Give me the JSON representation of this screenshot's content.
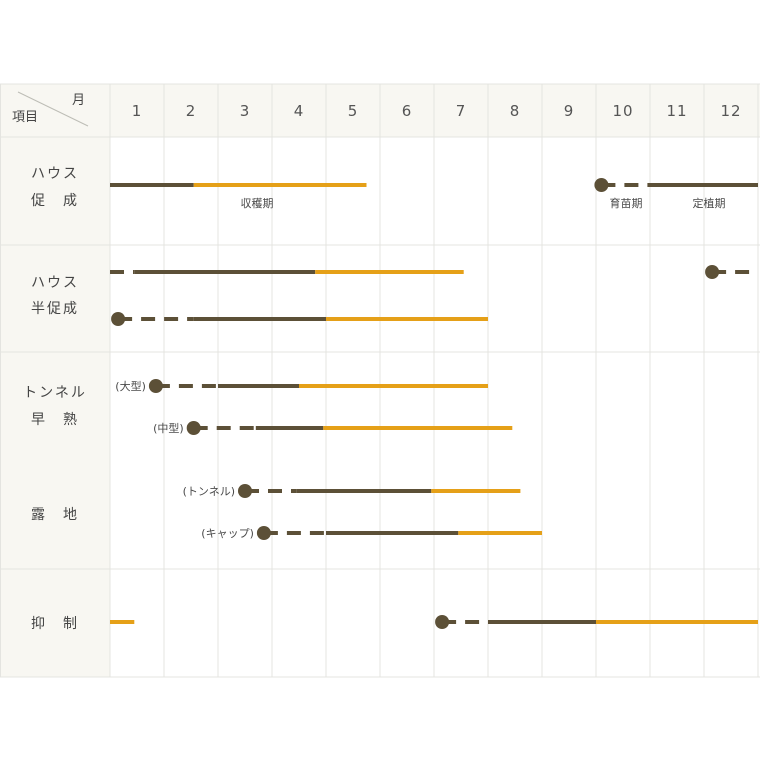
{
  "chart_data": {
    "type": "gantt",
    "header": {
      "corner_top": "月",
      "corner_bottom": "項目"
    },
    "months": [
      "1",
      "2",
      "3",
      "4",
      "5",
      "6",
      "7",
      "8",
      "9",
      "10",
      "11",
      "12"
    ],
    "colors": {
      "growing": "#5c5037",
      "harvest": "#e5a018",
      "header_bg": "#f8f7f2",
      "grid": "#e4e4e0"
    },
    "legend_labels": {
      "harvest": "収穫期",
      "nursery": "育苗期",
      "planting": "定植期"
    },
    "categories": [
      {
        "lines": [
          "ハウス",
          "促　成"
        ]
      },
      {
        "lines": [
          "ハウス",
          "半促成"
        ]
      },
      {
        "lines": [
          "トンネル",
          "早　熟"
        ]
      },
      {
        "lines": [
          "露　地"
        ]
      },
      {
        "lines": [
          "抑　制"
        ]
      }
    ],
    "rows": [
      {
        "category": 0,
        "label": "",
        "segments": [
          {
            "kind": "growing",
            "start": 1.0,
            "end": 2.55
          },
          {
            "kind": "harvest",
            "start": 2.55,
            "end": 5.75
          },
          {
            "kind": "sow",
            "at": 10.1
          },
          {
            "kind": "nursery",
            "start": 10.1,
            "end": 11.0
          },
          {
            "kind": "growing",
            "start": 11.0,
            "end": 13.0
          }
        ]
      },
      {
        "category": 1,
        "label": "",
        "segments": [
          {
            "kind": "nursery",
            "start": 1.0,
            "end": 1.45
          },
          {
            "kind": "growing",
            "start": 1.45,
            "end": 4.8
          },
          {
            "kind": "harvest",
            "start": 4.8,
            "end": 7.55
          },
          {
            "kind": "sow",
            "at": 12.15
          },
          {
            "kind": "nursery",
            "start": 12.15,
            "end": 13.0
          }
        ]
      },
      {
        "category": 1,
        "label": "",
        "segments": [
          {
            "kind": "sow",
            "at": 1.15
          },
          {
            "kind": "nursery",
            "start": 1.15,
            "end": 2.55
          },
          {
            "kind": "growing",
            "start": 2.55,
            "end": 5.0
          },
          {
            "kind": "harvest",
            "start": 5.0,
            "end": 8.0
          }
        ]
      },
      {
        "category": 2,
        "label": "(大型)",
        "segments": [
          {
            "kind": "sow",
            "at": 1.85
          },
          {
            "kind": "nursery",
            "start": 1.85,
            "end": 3.0
          },
          {
            "kind": "growing",
            "start": 3.0,
            "end": 4.5
          },
          {
            "kind": "harvest",
            "start": 4.5,
            "end": 8.0
          }
        ]
      },
      {
        "category": 2,
        "label": "(中型)",
        "segments": [
          {
            "kind": "sow",
            "at": 2.55
          },
          {
            "kind": "nursery",
            "start": 2.55,
            "end": 3.7
          },
          {
            "kind": "growing",
            "start": 3.7,
            "end": 4.95
          },
          {
            "kind": "harvest",
            "start": 4.95,
            "end": 8.45
          }
        ]
      },
      {
        "category": 3,
        "label": "(トンネル)",
        "segments": [
          {
            "kind": "sow",
            "at": 3.5
          },
          {
            "kind": "nursery",
            "start": 3.5,
            "end": 4.45
          },
          {
            "kind": "growing",
            "start": 4.45,
            "end": 6.95
          },
          {
            "kind": "harvest",
            "start": 6.95,
            "end": 8.6
          }
        ]
      },
      {
        "category": 3,
        "label": "(キャップ)",
        "segments": [
          {
            "kind": "sow",
            "at": 3.85
          },
          {
            "kind": "nursery",
            "start": 3.85,
            "end": 5.0
          },
          {
            "kind": "growing",
            "start": 5.0,
            "end": 7.45
          },
          {
            "kind": "harvest",
            "start": 7.45,
            "end": 9.0
          }
        ]
      },
      {
        "category": 4,
        "label": "",
        "segments": [
          {
            "kind": "harvest",
            "start": 1.0,
            "end": 1.45
          },
          {
            "kind": "sow",
            "at": 7.15
          },
          {
            "kind": "nursery",
            "start": 7.15,
            "end": 8.0
          },
          {
            "kind": "growing",
            "start": 8.0,
            "end": 10.0
          },
          {
            "kind": "harvest",
            "start": 10.0,
            "end": 13.0
          }
        ]
      }
    ]
  }
}
